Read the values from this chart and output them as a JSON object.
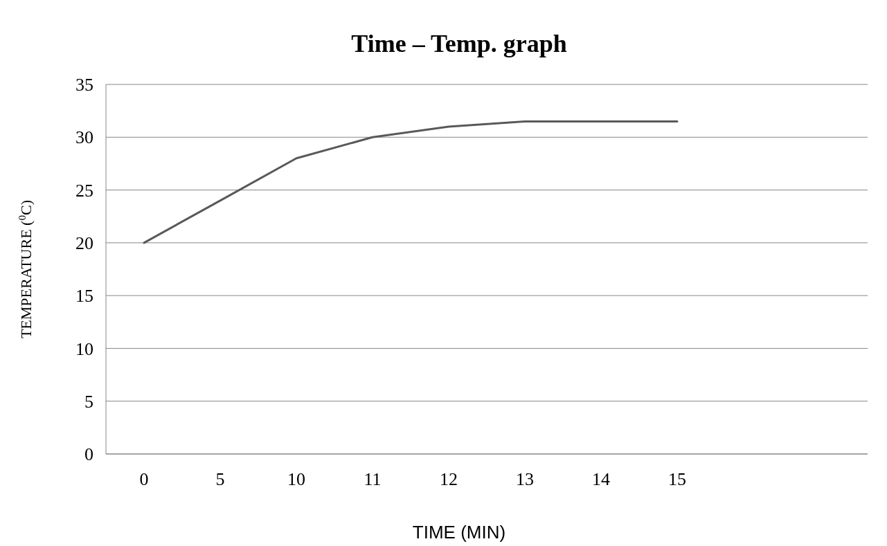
{
  "chart_data": {
    "type": "line",
    "title": "Time – Temp. graph",
    "xlabel": "TIME (MIN)",
    "ylabel": "TEMPERATURE ($^{0}$C)",
    "categories": [
      "0",
      "5",
      "10",
      "11",
      "12",
      "13",
      "14",
      "15",
      null,
      null
    ],
    "series": [
      {
        "color": "#595959",
        "values": [
          20,
          24,
          28,
          30,
          31,
          31.5,
          31.5,
          31.5,
          null,
          null
        ]
      }
    ],
    "ylim": [
      0,
      35
    ],
    "yticks": [
      0,
      5,
      10,
      15,
      20,
      25,
      30,
      35
    ],
    "grid": "y",
    "marker": "none",
    "line_style": "solid"
  }
}
